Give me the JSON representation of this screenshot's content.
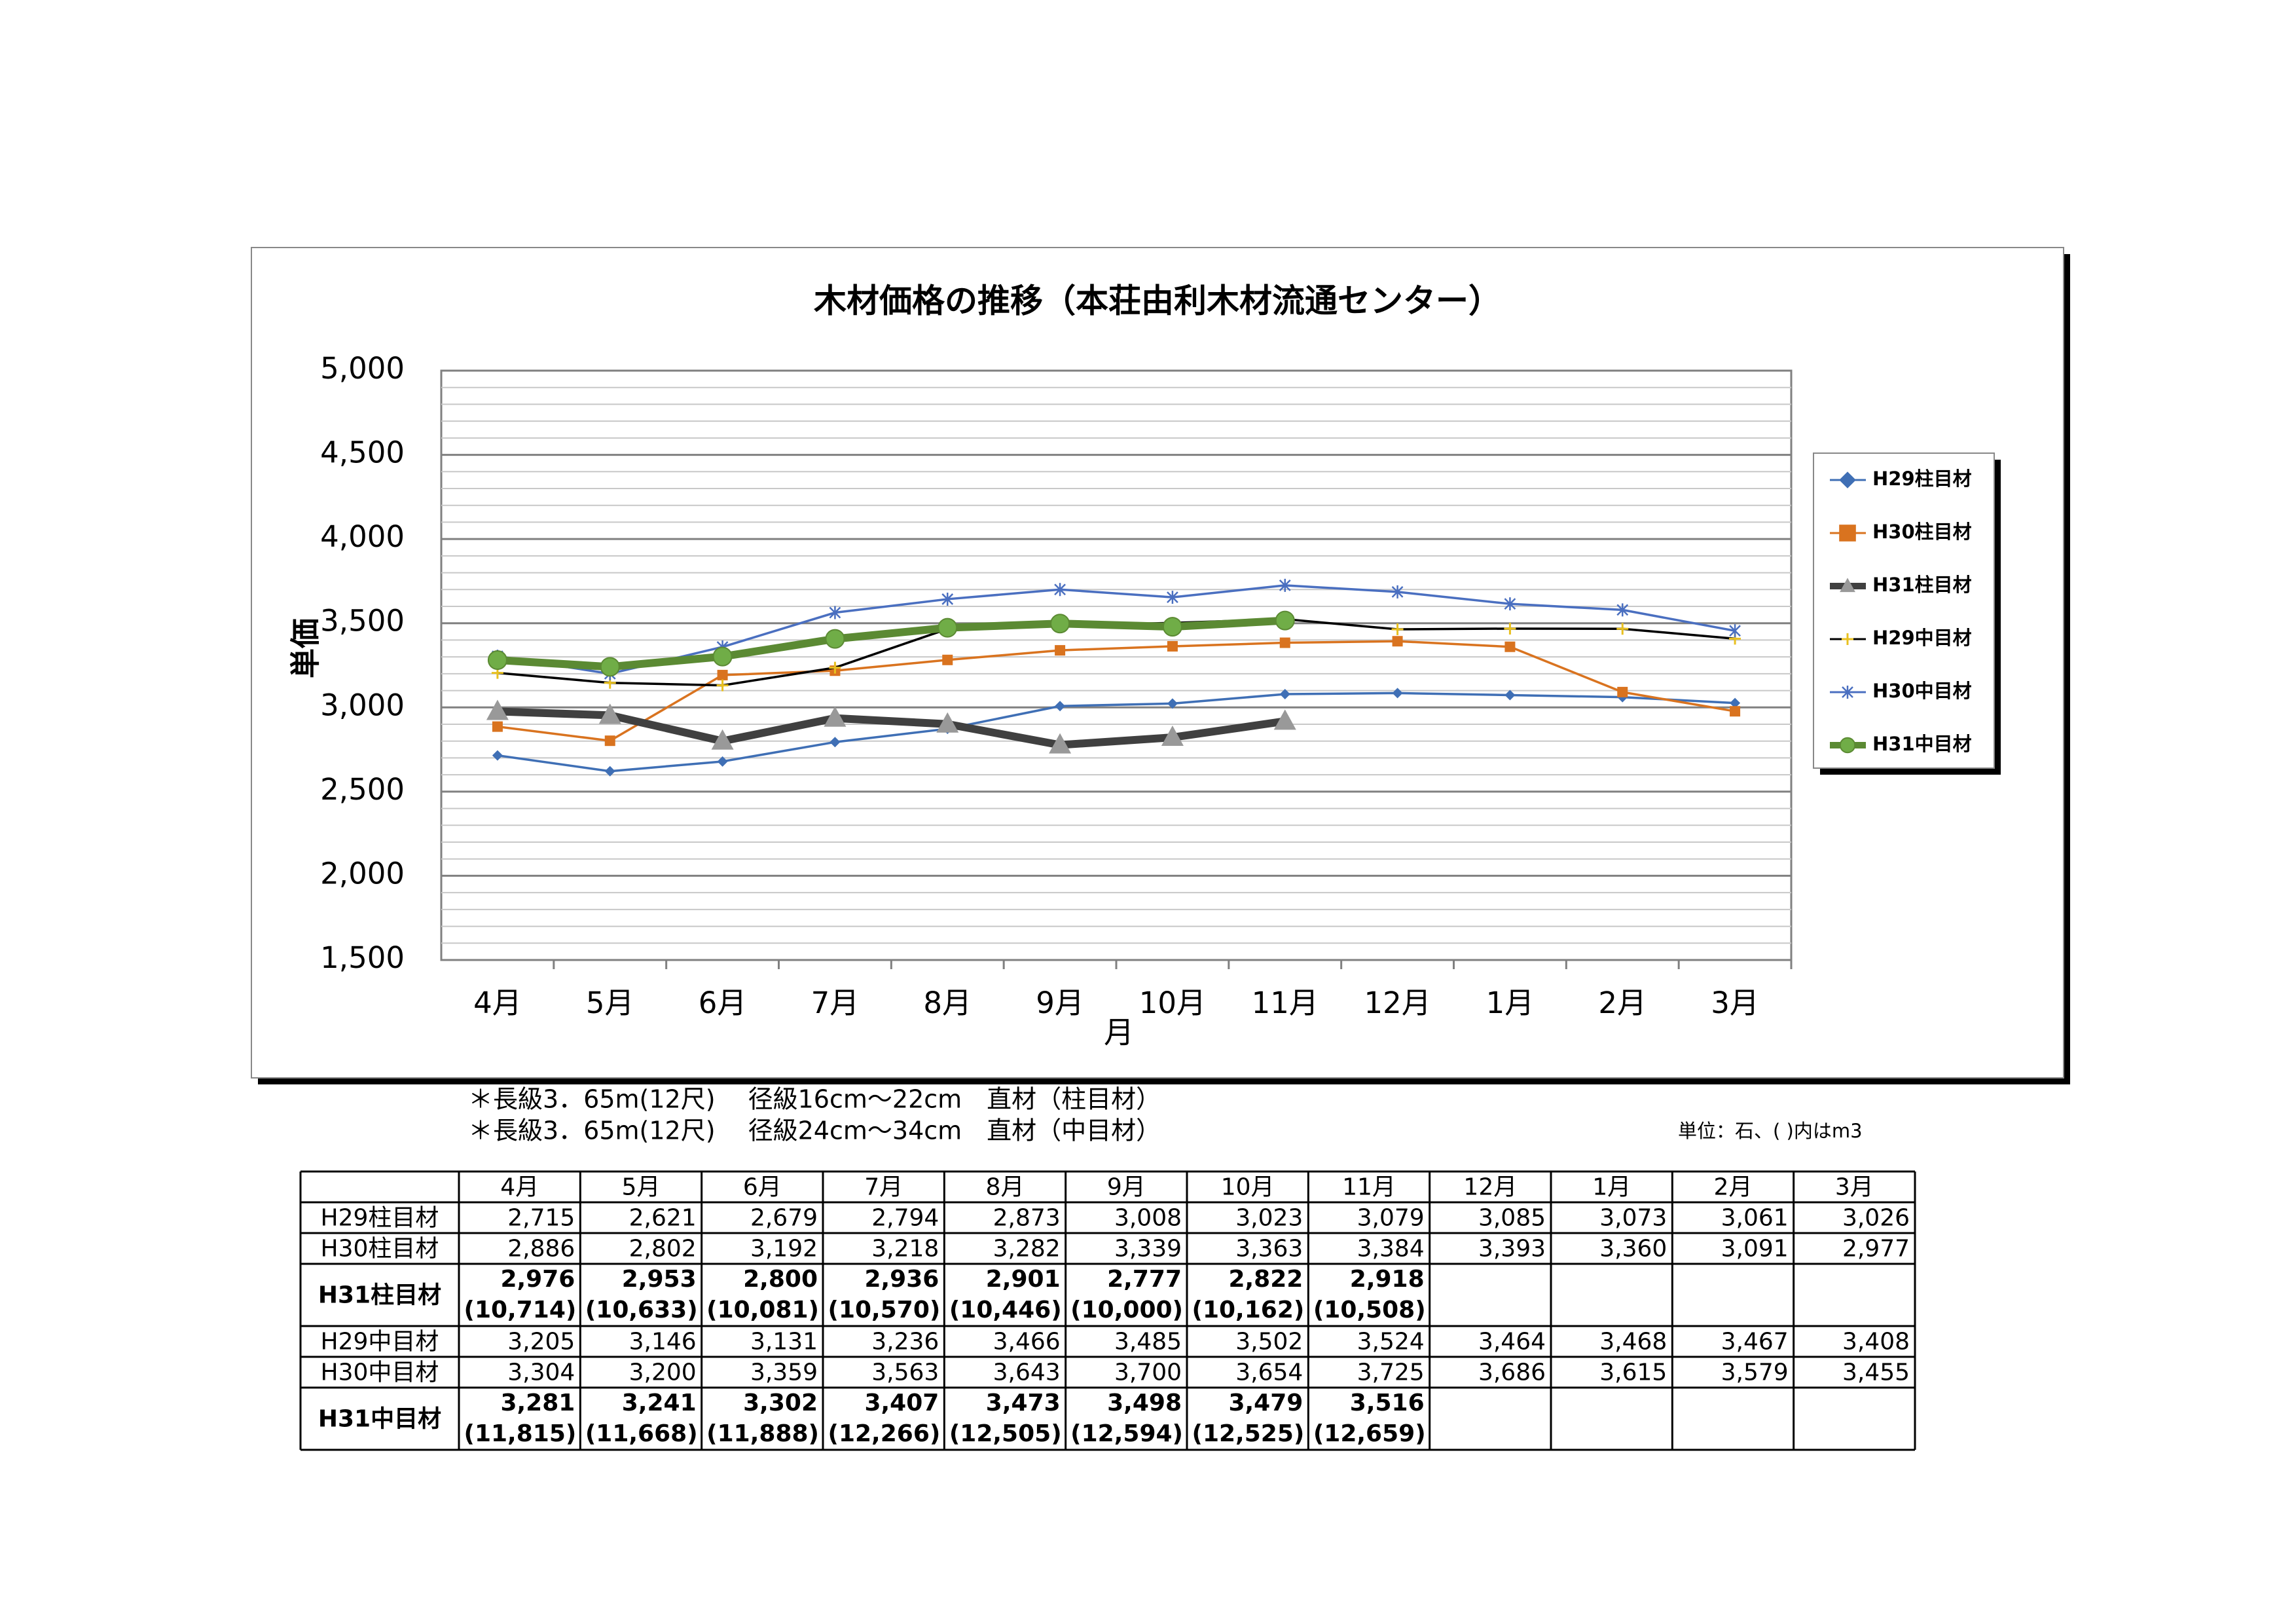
{
  "chart_data": {
    "type": "line",
    "title": "木材価格の推移（本荘由利木材流通センター）",
    "ylabel": "単価",
    "xlabel": "月",
    "categories": [
      "4月",
      "5月",
      "6月",
      "7月",
      "8月",
      "9月",
      "10月",
      "11月",
      "12月",
      "1月",
      "2月",
      "3月"
    ],
    "series": [
      {
        "name": "H29柱目材",
        "color": "#3f6fb5",
        "marker": "diamond",
        "values": [
          2715,
          2621,
          2679,
          2794,
          2873,
          3008,
          3023,
          3079,
          3085,
          3073,
          3061,
          3026
        ]
      },
      {
        "name": "H30柱目材",
        "color": "#d9731f",
        "marker": "square",
        "values": [
          2886,
          2802,
          3192,
          3218,
          3282,
          3339,
          3363,
          3384,
          3393,
          3360,
          3091,
          2977
        ]
      },
      {
        "name": "H31柱目材",
        "color": "#404040",
        "marker": "triangle",
        "marker_color": "#999999",
        "values": [
          2976,
          2953,
          2800,
          2936,
          2901,
          2777,
          2822,
          2918,
          null,
          null,
          null,
          null
        ]
      },
      {
        "name": "H29中目材",
        "color": "#000000",
        "marker": "plus",
        "marker_color": "#e8c020",
        "values": [
          3205,
          3146,
          3131,
          3236,
          3466,
          3485,
          3502,
          3524,
          3464,
          3468,
          3467,
          3408
        ]
      },
      {
        "name": "H30中目材",
        "color": "#4a6fc0",
        "marker": "star",
        "values": [
          3304,
          3200,
          3359,
          3563,
          3643,
          3700,
          3654,
          3725,
          3686,
          3615,
          3579,
          3455
        ]
      },
      {
        "name": "H31中目材",
        "color": "#5b8a33",
        "marker": "circle",
        "marker_color": "#70ad47",
        "values": [
          3281,
          3241,
          3302,
          3407,
          3473,
          3498,
          3479,
          3516,
          null,
          null,
          null,
          null
        ]
      }
    ],
    "ylim": [
      1500,
      5000
    ],
    "yticks": [
      {
        "value": 1500,
        "label": "1,500"
      },
      {
        "value": 2000,
        "label": "2,000"
      },
      {
        "value": 2500,
        "label": "2,500"
      },
      {
        "value": 3000,
        "label": "3,000"
      },
      {
        "value": 3500,
        "label": "3,500"
      },
      {
        "value": 4000,
        "label": "4,000"
      },
      {
        "value": 4500,
        "label": "4,500"
      },
      {
        "value": 5000,
        "label": "5,000"
      }
    ],
    "minor_yticks": [
      1600,
      1700,
      1800,
      1900,
      2100,
      2200,
      2300,
      2400,
      2600,
      2700,
      2800,
      2900,
      3100,
      3200,
      3300,
      3400,
      3600,
      3700,
      3800,
      3900,
      4100,
      4200,
      4300,
      4400,
      4600,
      4700,
      4800,
      4900
    ],
    "grid": true,
    "legend": "right"
  },
  "notes": [
    "＊長級3．65m(12尺)　 径級16cm～22cm　直材（柱目材）",
    "＊長級3．65m(12尺)　 径級24cm～34cm　直材（中目材）"
  ],
  "unit": "単位：石、( )内はm3",
  "table": {
    "columns": [
      "4月",
      "5月",
      "6月",
      "7月",
      "8月",
      "9月",
      "10月",
      "11月",
      "12月",
      "1月",
      "2月",
      "3月"
    ],
    "rows": [
      {
        "label": "H29柱目材",
        "cells": [
          "2,715",
          "2,621",
          "2,679",
          "2,794",
          "2,873",
          "3,008",
          "3,023",
          "3,079",
          "3,085",
          "3,073",
          "3,061",
          "3,026"
        ]
      },
      {
        "label": "H30柱目材",
        "cells": [
          "2,886",
          "2,802",
          "3,192",
          "3,218",
          "3,282",
          "3,339",
          "3,363",
          "3,384",
          "3,393",
          "3,360",
          "3,091",
          "2,977"
        ]
      },
      {
        "label": "H31柱目材",
        "bold": true,
        "cells": [
          "2,976",
          "2,953",
          "2,800",
          "2,936",
          "2,901",
          "2,777",
          "2,822",
          "2,918"
        ],
        "sub": [
          "(10,714)",
          "(10,633)",
          "(10,081)",
          "(10,570)",
          "(10,446)",
          "(10,000)",
          "(10,162)",
          "(10,508)"
        ]
      },
      {
        "label": "H29中目材",
        "cells": [
          "3,205",
          "3,146",
          "3,131",
          "3,236",
          "3,466",
          "3,485",
          "3,502",
          "3,524",
          "3,464",
          "3,468",
          "3,467",
          "3,408"
        ]
      },
      {
        "label": "H30中目材",
        "cells": [
          "3,304",
          "3,200",
          "3,359",
          "3,563",
          "3,643",
          "3,700",
          "3,654",
          "3,725",
          "3,686",
          "3,615",
          "3,579",
          "3,455"
        ]
      },
      {
        "label": "H31中目材",
        "bold": true,
        "cells": [
          "3,281",
          "3,241",
          "3,302",
          "3,407",
          "3,473",
          "3,498",
          "3,479",
          "3,516"
        ],
        "sub": [
          "(11,815)",
          "(11,668)",
          "(11,888)",
          "(12,266)",
          "(12,505)",
          "(12,594)",
          "(12,525)",
          "(12,659)"
        ]
      }
    ]
  }
}
